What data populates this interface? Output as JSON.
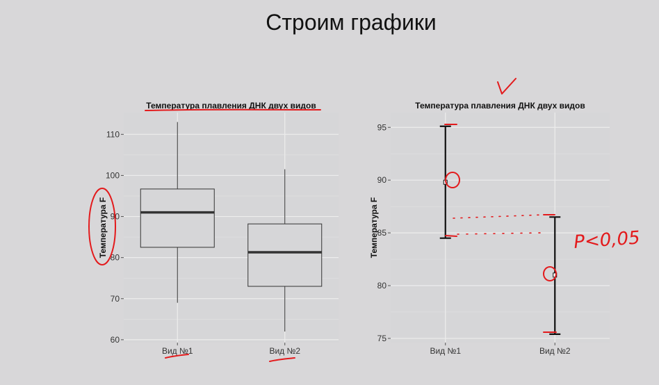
{
  "slide": {
    "title": "Строим графики",
    "handwritten_note": "P<0,05",
    "colors": {
      "background": "#d8d7d9",
      "panel": "#d6d6d8",
      "grid": "#ededed",
      "annotation": "#e31a1c"
    }
  },
  "chart_data": [
    {
      "type": "boxplot",
      "title": "Температура плавления ДНК двух видов",
      "xlabel": "",
      "ylabel": "Температура F",
      "categories": [
        "Вид №1",
        "Вид №2"
      ],
      "yticks": [
        60,
        70,
        80,
        90,
        100,
        110
      ],
      "ylim": [
        59.3,
        115.3
      ],
      "grid": true,
      "boxes": [
        {
          "name": "Вид №1",
          "min": 69,
          "q1": 82.5,
          "median": 91,
          "q3": 96.7,
          "max": 113
        },
        {
          "name": "Вид №2",
          "min": 62,
          "q1": 73,
          "median": 81.3,
          "q3": 88.2,
          "max": 101.5
        }
      ]
    },
    {
      "type": "errorbar",
      "title": "Температура плавления ДНК двух видов",
      "xlabel": "",
      "ylabel": "Температура F",
      "categories": [
        "Вид №1",
        "Вид №2"
      ],
      "yticks": [
        75,
        80,
        85,
        90,
        95
      ],
      "ylim": [
        74.6,
        96.4
      ],
      "grid": true,
      "points": [
        {
          "name": "Вид №1",
          "mean": 89.8,
          "lower": 84.5,
          "upper": 95.1
        },
        {
          "name": "Вид №2",
          "mean": 81,
          "lower": 75.4,
          "upper": 86.5
        }
      ]
    }
  ]
}
